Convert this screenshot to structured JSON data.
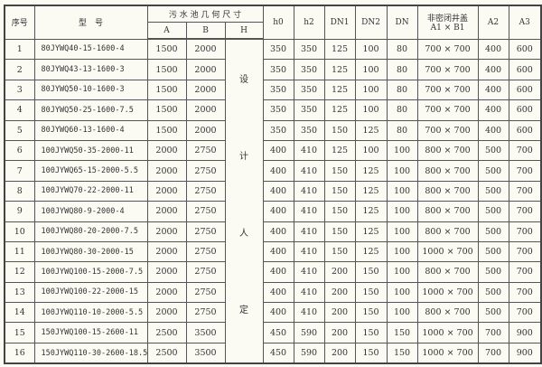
{
  "headers": {
    "seq": "序号",
    "model": "型　号",
    "pool_dims": "污 水 池 几 何 尺 寸",
    "A": "A",
    "B": "B",
    "H": "H",
    "h0": "h0",
    "h2": "h2",
    "DN1": "DN1",
    "DN2": "DN2",
    "DN": "DN",
    "cover": "非密闭井盖",
    "cover_sub": "A1 × B1",
    "A2": "A2",
    "A3": "A3"
  },
  "h_column_text": [
    "设",
    "计",
    "人",
    "定"
  ],
  "rows": [
    [
      "1",
      "80JYWQ40-15-1600-4",
      "1500",
      "2000",
      "350",
      "350",
      "125",
      "100",
      "80",
      "700 × 700",
      "400",
      "600"
    ],
    [
      "2",
      "80JYWQ43-13-1600-3",
      "1500",
      "2000",
      "350",
      "350",
      "125",
      "100",
      "80",
      "700 × 700",
      "400",
      "600"
    ],
    [
      "3",
      "80JYWQ50-10-1600-3",
      "1500",
      "2000",
      "350",
      "350",
      "125",
      "100",
      "80",
      "700 × 700",
      "400",
      "600"
    ],
    [
      "4",
      "80JYWQ50-25-1600-7.5",
      "1500",
      "2000",
      "350",
      "350",
      "125",
      "100",
      "80",
      "700 × 700",
      "400",
      "600"
    ],
    [
      "5",
      "80JYWQ60-13-1600-4",
      "1500",
      "2000",
      "350",
      "350",
      "150",
      "125",
      "80",
      "700 × 700",
      "400",
      "600"
    ],
    [
      "6",
      "100JYWQ50-35-2000-11",
      "2000",
      "2750",
      "400",
      "410",
      "125",
      "100",
      "100",
      "800 × 700",
      "500",
      "700"
    ],
    [
      "7",
      "100JYWQ65-15-2000-5.5",
      "2000",
      "2750",
      "400",
      "410",
      "150",
      "125",
      "100",
      "800 × 700",
      "500",
      "700"
    ],
    [
      "8",
      "100JYWQ70-22-2000-11",
      "2000",
      "2750",
      "400",
      "410",
      "150",
      "125",
      "100",
      "800 × 700",
      "500",
      "700"
    ],
    [
      "9",
      "100JYWQ80-9-2000-4",
      "2000",
      "2750",
      "400",
      "410",
      "150",
      "125",
      "100",
      "800 × 700",
      "500",
      "700"
    ],
    [
      "10",
      "100JYWQ80-20-2000-7.5",
      "2000",
      "2750",
      "400",
      "410",
      "150",
      "125",
      "100",
      "800 × 700",
      "500",
      "700"
    ],
    [
      "11",
      "100JYWQ80-30-2000-15",
      "2000",
      "2750",
      "400",
      "410",
      "150",
      "125",
      "100",
      "1000 × 700",
      "500",
      "700"
    ],
    [
      "12",
      "100JYWQ100-15-2000-7.5",
      "2000",
      "2750",
      "400",
      "410",
      "200",
      "150",
      "100",
      "800 × 700",
      "500",
      "700"
    ],
    [
      "13",
      "100JYWQ100-22-2000-15",
      "2000",
      "2750",
      "400",
      "410",
      "200",
      "150",
      "100",
      "1000 × 700",
      "500",
      "700"
    ],
    [
      "14",
      "100JYWQ110-10-2000-5.5",
      "2000",
      "2750",
      "400",
      "410",
      "200",
      "150",
      "100",
      "800 × 700",
      "500",
      "700"
    ],
    [
      "15",
      "150JYWQ100-15-2600-11",
      "2500",
      "3500",
      "450",
      "590",
      "200",
      "150",
      "150",
      "1000 × 700",
      "700",
      "900"
    ],
    [
      "16",
      "150JYWQ110-30-2600-18.5",
      "2500",
      "3500",
      "450",
      "590",
      "200",
      "150",
      "150",
      "1000 × 700",
      "700",
      "900"
    ]
  ]
}
